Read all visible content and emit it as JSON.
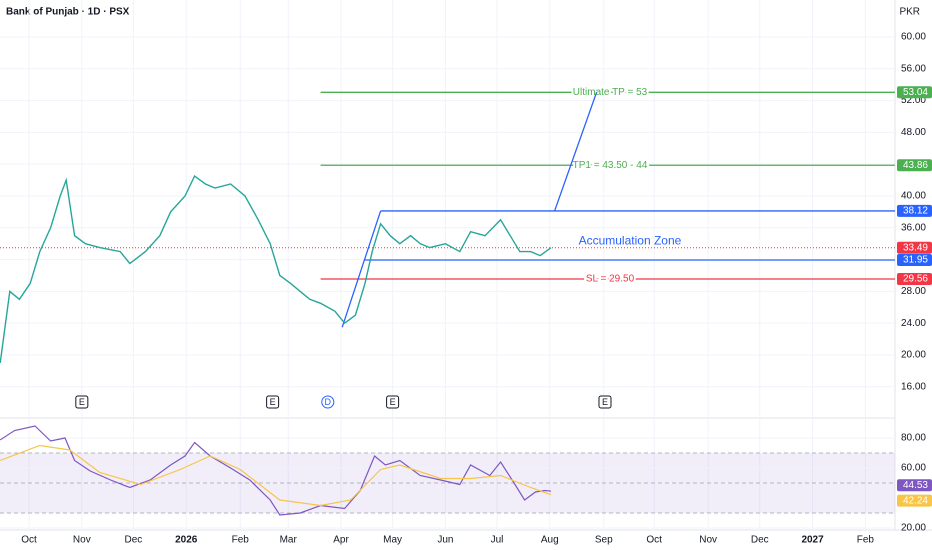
{
  "header": {
    "title": "Bank of Punjab · 1D · PSX",
    "currency": "PKR"
  },
  "chart_data": [
    {
      "type": "line",
      "color": "#26a69a",
      "grid": true,
      "x": [
        -2.4,
        -1.6,
        -0.8,
        0.1,
        0.9,
        1.8,
        2.6,
        3.1,
        3.8,
        4.7,
        5.9,
        7.6,
        8.4,
        9.7,
        10.9,
        11.8,
        13,
        13.8,
        14.7,
        15.5,
        16.8,
        18,
        19.1,
        20.1,
        20.9,
        21.8,
        22.6,
        23.4,
        24.3,
        25.5,
        26.3,
        27.2,
        28,
        28.6,
        29.3,
        30.1,
        30.9,
        31.8,
        32.6,
        33.4,
        34.7,
        35.9,
        36.8,
        38,
        39.3,
        40.1,
        40.9,
        41.8,
        42.6,
        43.5
      ],
      "values": [
        19,
        28,
        27,
        29,
        33,
        36,
        40,
        42,
        35,
        34,
        33.5,
        33,
        31.5,
        33,
        35,
        38,
        40,
        42.5,
        41.5,
        41,
        41.5,
        40,
        37,
        34,
        30,
        29,
        28,
        27,
        26.5,
        25.5,
        24,
        25,
        29,
        33,
        36.5,
        35,
        34,
        35,
        34,
        33.5,
        34,
        33,
        35.5,
        35,
        37,
        35,
        33,
        33,
        32.5,
        33.49
      ],
      "last_color": "#f23645",
      "xlim": [
        -2.42,
        72.17
      ],
      "xticks": [
        {
          "value": 0,
          "label": "Oct"
        },
        {
          "value": 4.4,
          "label": "Nov"
        },
        {
          "value": 8.7,
          "label": "Dec"
        },
        {
          "value": 13.1,
          "label": "2026"
        },
        {
          "value": 17.6,
          "label": "Feb"
        },
        {
          "value": 21.6,
          "label": "Mar"
        },
        {
          "value": 26,
          "label": "Apr"
        },
        {
          "value": 30.3,
          "label": "May"
        },
        {
          "value": 34.7,
          "label": "Jun"
        },
        {
          "value": 39,
          "label": "Jul"
        },
        {
          "value": 43.4,
          "label": "Aug"
        },
        {
          "value": 47.9,
          "label": "Sep"
        },
        {
          "value": 52.1,
          "label": "Oct"
        },
        {
          "value": 56.6,
          "label": "Nov"
        },
        {
          "value": 60.9,
          "label": "Dec"
        },
        {
          "value": 65.3,
          "label": "2027"
        },
        {
          "value": 69.7,
          "label": "Feb"
        }
      ],
      "ylim": [
        12.45,
        64.65
      ],
      "yticks": [
        {
          "value": 16,
          "label": "16.00"
        },
        {
          "value": 20,
          "label": "20.00"
        },
        {
          "value": 24,
          "label": "24.00"
        },
        {
          "value": 28,
          "label": "28.00"
        },
        {
          "value": 32,
          "label": "32.00"
        },
        {
          "value": 36,
          "label": "36.00"
        },
        {
          "value": 40,
          "label": "40.00"
        },
        {
          "value": 44,
          "label": "44.00"
        },
        {
          "value": 48,
          "label": "48.00"
        },
        {
          "value": 52,
          "label": "52.00"
        },
        {
          "value": 56,
          "label": "56.00"
        },
        {
          "value": 60,
          "label": "60.00"
        }
      ],
      "levels": [
        {
          "text": "Ultimate TP = 53",
          "value": 53.04,
          "color": "#4caf50",
          "start": 24.3
        },
        {
          "text": "TP1 = 43.50 - 44",
          "value": 43.86,
          "color": "#4caf50",
          "start": 24.3
        },
        {
          "value": 38.12,
          "color": "#2962ff",
          "start": 29.3
        },
        {
          "value": 31.95,
          "color": "#2962ff",
          "start": 28
        },
        {
          "text": "SL = 29.50",
          "value": 29.56,
          "color": "#f23645",
          "start": 24.3
        }
      ],
      "trendlines": [
        {
          "color": "#2962ff",
          "points": [
            [
              26.1,
              23.5
            ],
            [
              29.3,
              38.12
            ]
          ]
        },
        {
          "color": "#2962ff",
          "points": [
            [
              43.8,
              38.12
            ],
            [
              47.3,
              53.04
            ]
          ]
        }
      ],
      "annotation": {
        "text": "Accumulation Zone",
        "x": 45.8,
        "y": 34.3,
        "color": "#2962ff"
      },
      "events": [
        {
          "label": "E",
          "x": 4.4
        },
        {
          "label": "E",
          "x": 20.3
        },
        {
          "label": "D",
          "x": 24.9
        },
        {
          "label": "E",
          "x": 30.3
        },
        {
          "label": "E",
          "x": 48
        }
      ]
    },
    {
      "type": "line",
      "grid": true,
      "series": [
        {
          "color": "#7e57c2",
          "x": [
            -2.4,
            -1.2,
            0.5,
            1.8,
            3,
            3.8,
            5.1,
            6.8,
            8.4,
            10.1,
            11.8,
            13,
            13.8,
            15.1,
            16.8,
            18.4,
            20.1,
            20.9,
            22.6,
            24.3,
            26.3,
            27.6,
            28.8,
            29.7,
            30.9,
            32.6,
            34.3,
            35.9,
            36.8,
            38.4,
            39.3,
            40.5,
            41.3,
            42.2,
            43,
            43.5
          ],
          "values": [
            78.7,
            85,
            88,
            78,
            80,
            65,
            58,
            52,
            47,
            52,
            62,
            68,
            77,
            68,
            60,
            52,
            38.7,
            28.7,
            30,
            35,
            33,
            45,
            68,
            62,
            65,
            55,
            52,
            49,
            62,
            55,
            64,
            49,
            38.7,
            44,
            45,
            44.53
          ]
        },
        {
          "color": "#f7c548",
          "x": [
            -2.4,
            0.9,
            3.4,
            5.9,
            9.3,
            12.6,
            15.1,
            17.6,
            20.9,
            24.3,
            26.8,
            29.3,
            30.9,
            34.3,
            36.8,
            39.3,
            41.8,
            43.5
          ],
          "values": [
            65,
            75,
            72,
            57,
            49,
            59,
            68,
            59,
            38.7,
            35,
            38.7,
            59,
            62,
            53,
            53,
            55,
            47,
            42.24
          ]
        }
      ],
      "xlim": [
        -2.42,
        72.17
      ],
      "ylim": [
        18.7,
        91.3
      ],
      "yticks": [
        {
          "value": 20,
          "label": "20.00"
        },
        {
          "value": 60,
          "label": "60.00"
        },
        {
          "value": 80,
          "label": "80.00"
        }
      ],
      "bands": [
        70,
        50,
        30
      ]
    }
  ]
}
